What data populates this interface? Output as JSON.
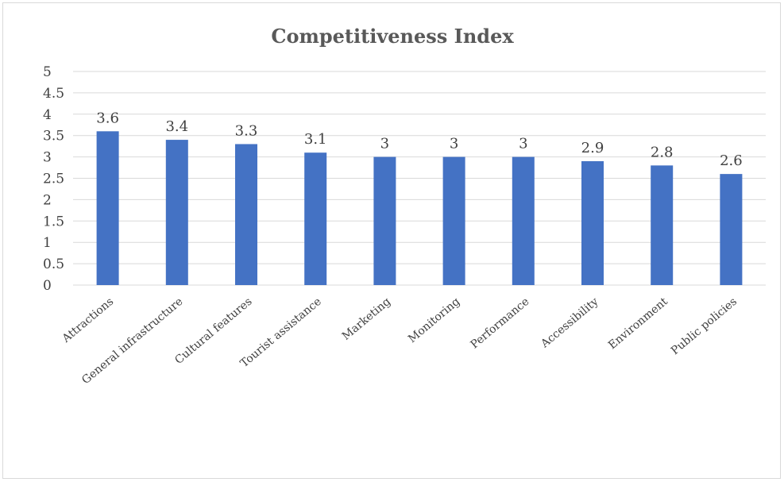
{
  "chart_data": {
    "type": "bar",
    "title": "Competitiveness Index",
    "xlabel": "",
    "ylabel": "",
    "categories": [
      "Attractions",
      "General infrastructure",
      "Cultural features",
      "Tourist assistance",
      "Marketing",
      "Monitoring",
      "Performance",
      "Accessibility",
      "Environment",
      "Public policies"
    ],
    "values": [
      3.6,
      3.4,
      3.3,
      3.1,
      3,
      3,
      3,
      2.9,
      2.8,
      2.6
    ],
    "data_labels": [
      "3.6",
      "3.4",
      "3.3",
      "3.1",
      "3",
      "3",
      "3",
      "2.9",
      "2.8",
      "2.6"
    ],
    "ylim": [
      0,
      5
    ],
    "yticks": [
      "0",
      "0.5",
      "1",
      "1.5",
      "2",
      "2.5",
      "3",
      "3.5",
      "4",
      "4.5",
      "5"
    ],
    "grid": true,
    "legend": "none",
    "bar_color": "#4472c4",
    "grid_color": "#d9d9d9"
  }
}
